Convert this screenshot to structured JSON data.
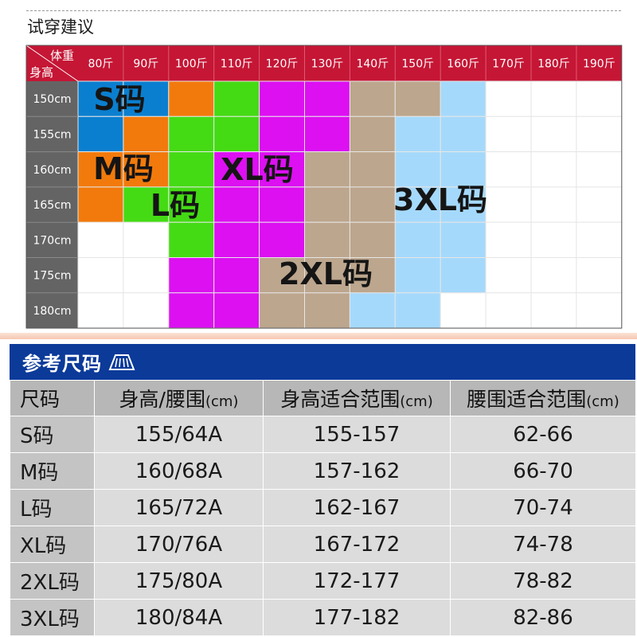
{
  "section_title": "试穿建议",
  "grid": {
    "corner_top": "体重",
    "corner_bottom": "身高",
    "weights": [
      "80斤",
      "90斤",
      "100斤",
      "110斤",
      "120斤",
      "130斤",
      "140斤",
      "150斤",
      "160斤",
      "170斤",
      "180斤",
      "190斤"
    ],
    "heights": [
      "150cm",
      "155cm",
      "160cm",
      "165cm",
      "170cm",
      "175cm",
      "180cm"
    ],
    "colors": {
      "S": "#0b7fcf",
      "M": "#f27a0c",
      "L": "#44db14",
      "XL": "#dc10f1",
      "2XL": "#bca68d",
      "3XL": "#a5d9fb",
      "empty": "#ffffff",
      "header_bg": "#c51635",
      "side_bg": "#646464",
      "grid_line": "#e6e6e6"
    },
    "cells": [
      [
        "S",
        "S",
        "M",
        "L",
        "XL",
        "XL",
        "2XL",
        "2XL",
        "3XL",
        "",
        "",
        ""
      ],
      [
        "S",
        "M",
        "L",
        "L",
        "XL",
        "XL",
        "2XL",
        "3XL",
        "3XL",
        "",
        "",
        ""
      ],
      [
        "M",
        "M",
        "L",
        "XL",
        "XL",
        "2XL",
        "2XL",
        "3XL",
        "3XL",
        "",
        "",
        ""
      ],
      [
        "M",
        "L",
        "L",
        "XL",
        "XL",
        "2XL",
        "2XL",
        "3XL",
        "3XL",
        "",
        "",
        ""
      ],
      [
        "",
        "",
        "L",
        "XL",
        "XL",
        "2XL",
        "2XL",
        "3XL",
        "3XL",
        "",
        "",
        ""
      ],
      [
        "",
        "",
        "XL",
        "XL",
        "2XL",
        "2XL",
        "2XL",
        "3XL",
        "3XL",
        "",
        "",
        ""
      ],
      [
        "",
        "",
        "XL",
        "XL",
        "2XL",
        "2XL",
        "3XL",
        "3XL",
        "",
        "",
        "",
        ""
      ]
    ],
    "labels": [
      {
        "text": "S码",
        "size": "S"
      },
      {
        "text": "M码",
        "size": "M"
      },
      {
        "text": "L码",
        "size": "L"
      },
      {
        "text": "XL码",
        "size": "XL"
      },
      {
        "text": "2XL码",
        "size": "2XL"
      },
      {
        "text": "3XL码",
        "size": "3XL"
      }
    ]
  },
  "reference": {
    "title": "参考尺码",
    "icon": "ruler-icon",
    "headers": [
      {
        "main": "尺码",
        "unit": ""
      },
      {
        "main": "身高/腰围",
        "unit": "(cm)"
      },
      {
        "main": "身高适合范围",
        "unit": "(cm)"
      },
      {
        "main": "腰围适合范围",
        "unit": "(cm)"
      }
    ],
    "rows": [
      [
        "S码",
        "155/64A",
        "155-157",
        "62-66"
      ],
      [
        "M码",
        "160/68A",
        "157-162",
        "66-70"
      ],
      [
        "L码",
        "165/72A",
        "162-167",
        "70-74"
      ],
      [
        "XL码",
        "170/76A",
        "167-172",
        "74-78"
      ],
      [
        "2XL码",
        "175/80A",
        "172-177",
        "78-82"
      ],
      [
        "3XL码",
        "180/84A",
        "177-182",
        "82-86"
      ]
    ]
  }
}
